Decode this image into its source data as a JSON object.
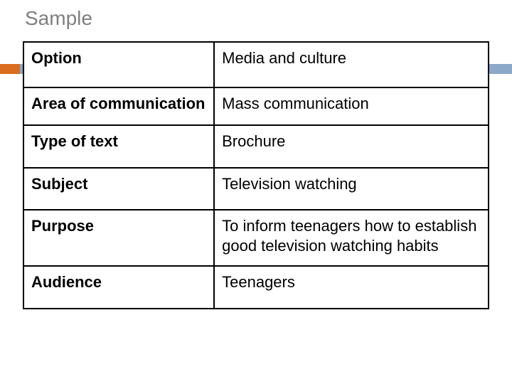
{
  "title": "Sample",
  "accent": {
    "orange": "#d96c1e",
    "blue": "#8ba8c8"
  },
  "table": {
    "type": "table",
    "border_color": "#000000",
    "background_color": "#ffffff",
    "label_font_weight": 700,
    "value_font_weight": 400,
    "font_size_pt": 16,
    "columns": [
      "label",
      "value"
    ],
    "col_widths_pct": [
      41,
      59
    ],
    "rows": [
      {
        "label": "Option",
        "value": "Media and culture"
      },
      {
        "label": "Area of communication",
        "value": "Mass communication"
      },
      {
        "label": "Type of text",
        "value": "Brochure"
      },
      {
        "label": "Subject",
        "value": "Television watching"
      },
      {
        "label": "Purpose",
        "value": "To inform teenagers how to establish good television watching habits"
      },
      {
        "label": "Audience",
        "value": "Teenagers"
      }
    ]
  }
}
